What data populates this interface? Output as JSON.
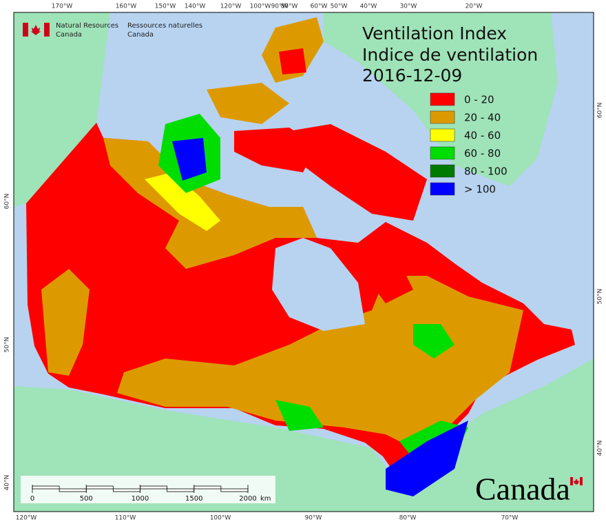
{
  "header": {
    "agency_en": [
      "Natural Resources",
      "Canada"
    ],
    "agency_fr": [
      "Ressources naturelles",
      "Canada"
    ]
  },
  "title": {
    "line1": "Ventilation Index",
    "line2": "Indice de ventilation",
    "date": "2016-12-09"
  },
  "legend": [
    {
      "label": "0 - 20",
      "color": "#ff0000"
    },
    {
      "label": "20 - 40",
      "color": "#dd9a00"
    },
    {
      "label": "40 - 60",
      "color": "#ffff00"
    },
    {
      "label": "60 - 80",
      "color": "#00dd00"
    },
    {
      "label": "80 - 100",
      "color": "#007a00"
    },
    {
      "label": "> 100",
      "color": "#0000ff"
    }
  ],
  "graticule": {
    "top": [
      "170°W",
      "160°W",
      "150°W",
      "140°W",
      "120°W",
      "100°W",
      "90°W",
      "80°W",
      "60°W",
      "50°W",
      "40°W",
      "30°W",
      "20°W"
    ],
    "bottom": [
      "120°W",
      "110°W",
      "100°W",
      "90°W",
      "80°W",
      "70°W"
    ],
    "left": [
      "60°N",
      "50°N",
      "40°N"
    ],
    "right": [
      "60°N",
      "50°N",
      "40°N"
    ]
  },
  "scale_bar": {
    "ticks": [
      0,
      500,
      1000,
      1500,
      2000
    ],
    "unit": "km"
  },
  "wordmark": "Canada"
}
